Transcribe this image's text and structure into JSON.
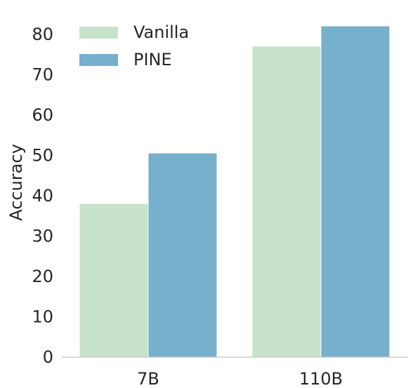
{
  "chart_data": {
    "type": "bar",
    "categories": [
      "7B",
      "110B"
    ],
    "series": [
      {
        "name": "Vanilla",
        "values": [
          38,
          77
        ],
        "color": "#c7e3cb"
      },
      {
        "name": "PINE",
        "values": [
          50.5,
          82
        ],
        "color": "#77b0cc"
      }
    ],
    "ylabel": "Accuracy",
    "ylim": [
      0,
      85
    ],
    "yticks": [
      0,
      10,
      20,
      30,
      40,
      50,
      60,
      70,
      80
    ],
    "grid": false,
    "legend_position": "top-left",
    "axis_color": "#cccccc"
  }
}
